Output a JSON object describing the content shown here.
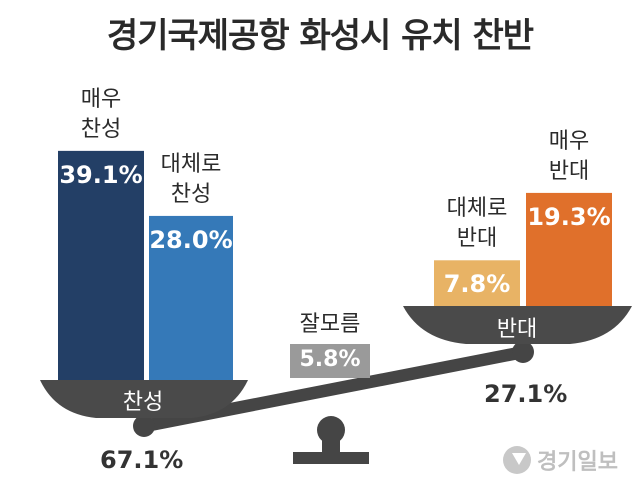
{
  "title": "경기국제공항 화성시 유치 찬반",
  "chart_data": {
    "type": "bar",
    "categories": [
      "매우 찬성",
      "대체로 찬성",
      "잘모름",
      "대체로 반대",
      "매우 반대"
    ],
    "values": [
      39.1,
      28.0,
      5.8,
      7.8,
      19.3
    ],
    "value_labels": [
      "39.1%",
      "28.0%",
      "5.8%",
      "7.8%",
      "19.3%"
    ],
    "category_labels": [
      "매우\n찬성",
      "대체로\n찬성",
      "잘모름",
      "대체로\n반대",
      "매우\n반대"
    ],
    "colors": [
      "#233f66",
      "#3579b8",
      "#9a9a9a",
      "#e8b365",
      "#e0702b"
    ],
    "groups": [
      {
        "name": "찬성",
        "total": 67.1,
        "total_label": "67.1%",
        "members": [
          0,
          1
        ]
      },
      {
        "name": "반대",
        "total": 27.1,
        "total_label": "27.1%",
        "members": [
          3,
          4
        ]
      }
    ]
  },
  "watermark": "경기일보"
}
